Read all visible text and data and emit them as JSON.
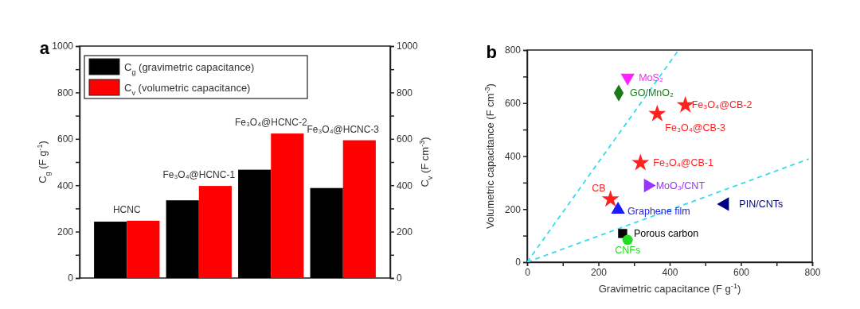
{
  "chart_data": [
    {
      "type": "bar",
      "title": "a",
      "categories": [
        "HCNC",
        "Fe₃O₄@HCNC-1",
        "Fe₃O₄@HCNC-2",
        "Fe₃O₄@HCNC-3"
      ],
      "series": [
        {
          "name": "C$_{g}$ (gravimetric capacitance)",
          "color": "#000000",
          "values": [
            243,
            335,
            467,
            388
          ]
        },
        {
          "name": "C$_{v}$ (volumetric capacitance)",
          "color": "#ff0000",
          "values": [
            247,
            397,
            623,
            594
          ],
          "axis": "y2"
        }
      ],
      "ylabel": "C$_{g}$ (F g$^{-1}$)",
      "y2label": "C$_{v}$ (F cm$^{-3}$)",
      "ylim": [
        0,
        1000
      ],
      "yticks": [
        0,
        {
          "value": 100,
          "label": null
        },
        200,
        {
          "value": 300,
          "label": null
        },
        400,
        {
          "value": 500,
          "label": null
        },
        600,
        {
          "value": 700,
          "label": null
        },
        800,
        {
          "value": 900,
          "label": null
        },
        1000
      ],
      "y2lim": [
        0,
        1000
      ],
      "y2ticks": [
        0,
        {
          "value": 100,
          "label": null
        },
        200,
        {
          "value": 300,
          "label": null
        },
        400,
        {
          "value": 500,
          "label": null
        },
        600,
        {
          "value": 700,
          "label": null
        },
        800,
        {
          "value": 900,
          "label": null
        },
        1000
      ],
      "legend": "top left"
    },
    {
      "type": "scatter",
      "title": "b",
      "xlabel": "Gravimetric capacitance (F g$^{-1}$)",
      "ylabel": "Volumetric capacitance (F cm$^{-3}$)",
      "xlim": [
        0,
        800
      ],
      "xticks": [
        0,
        {
          "value": 100,
          "label": null
        },
        200,
        {
          "value": 300,
          "label": null
        },
        400,
        {
          "value": 500,
          "label": null
        },
        600,
        {
          "value": 700,
          "label": null
        },
        800
      ],
      "ylim": [
        0,
        800
      ],
      "yticks": [
        0,
        {
          "value": 100,
          "label": null
        },
        200,
        {
          "value": 300,
          "label": null
        },
        400,
        {
          "value": 500,
          "label": null
        },
        600,
        {
          "value": 700,
          "label": null
        },
        800
      ],
      "series": [
        {
          "type": "line",
          "color": "#33ddee",
          "line_style": "dashed",
          "x": [
            0,
            425
          ],
          "values": [
            0,
            800
          ]
        },
        {
          "type": "line",
          "color": "#33ddee",
          "line_style": "dashed",
          "x": [
            0,
            790
          ],
          "values": [
            0,
            389
          ]
        },
        {
          "name": "MoS₂",
          "color": "#ff22ff",
          "marker": "triangle-down",
          "x": [
            282
          ],
          "values": [
            696
          ]
        },
        {
          "name": "GO/MnO₂",
          "color": "#1a7a1a",
          "marker": "diamond",
          "x": [
            257
          ],
          "values": [
            638
          ]
        },
        {
          "name": "Fe₃O₄@CB-2",
          "color": "#ff2020",
          "marker": "star",
          "x": [
            444
          ],
          "values": [
            592
          ]
        },
        {
          "name": "Fe₃O₄@CB-3",
          "color": "#ff2020",
          "marker": "star",
          "x": [
            365
          ],
          "values": [
            559
          ]
        },
        {
          "name": "Fe₃O₄@CB-1",
          "color": "#ff2020",
          "marker": "star",
          "x": [
            318
          ],
          "values": [
            374
          ]
        },
        {
          "name": "MoO₃/CNT",
          "color": "#9933ff",
          "marker": "triangle-right",
          "x": [
            339
          ],
          "values": [
            289
          ]
        },
        {
          "name": "CB",
          "color": "#ff2020",
          "marker": "star",
          "x": [
            234
          ],
          "values": [
            237
          ]
        },
        {
          "name": "Graphene film",
          "color": "#1a1aff",
          "marker": "triangle",
          "x": [
            255
          ],
          "values": [
            198
          ]
        },
        {
          "name": "PIN/CNTs",
          "color": "#000080",
          "marker": "triangle-left",
          "x": [
            555
          ],
          "values": [
            219
          ]
        },
        {
          "name": "Porous carbon",
          "color": "#000000",
          "marker": "square",
          "x": [
            268
          ],
          "values": [
            108
          ]
        },
        {
          "name": "CNFs",
          "color": "#22dd22",
          "marker": "circle",
          "x": [
            282
          ],
          "values": [
            84
          ]
        }
      ]
    }
  ]
}
